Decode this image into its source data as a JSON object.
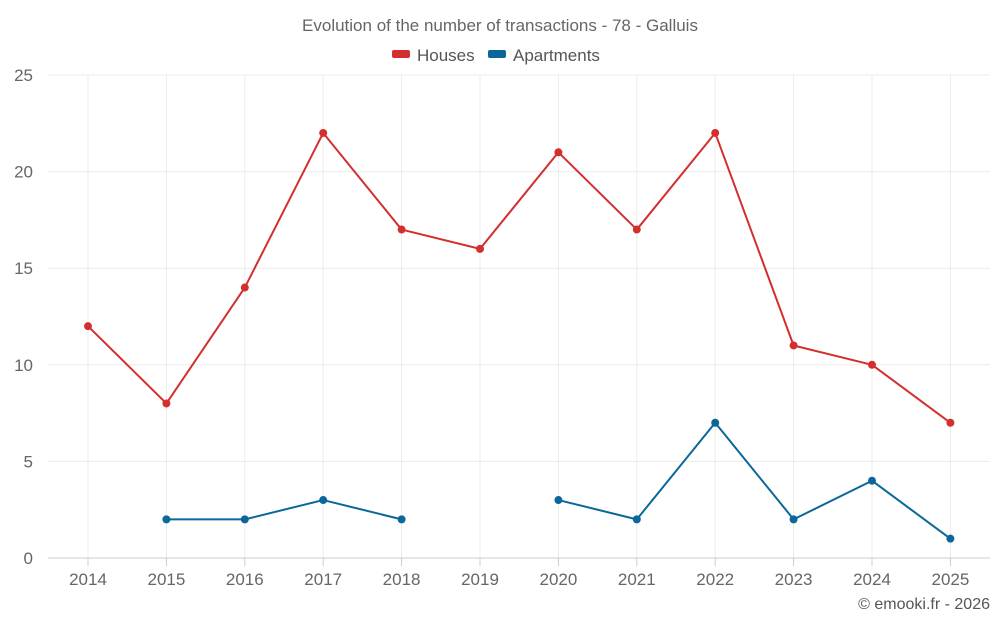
{
  "chart_data": {
    "type": "line",
    "title": "Evolution of the number of transactions - 78 - Galluis",
    "categories": [
      "2014",
      "2015",
      "2016",
      "2017",
      "2018",
      "2019",
      "2020",
      "2021",
      "2022",
      "2023",
      "2024",
      "2025"
    ],
    "ylim": [
      0,
      25
    ],
    "yticks": [
      0,
      5,
      10,
      15,
      20,
      25
    ],
    "xlabel": "",
    "ylabel": "",
    "grid": true,
    "legend_position": "top-center",
    "series": [
      {
        "name": "Houses",
        "color": "#d32f2f",
        "values": [
          12,
          8,
          14,
          22,
          17,
          16,
          21,
          17,
          22,
          11,
          10,
          7
        ]
      },
      {
        "name": "Apartments",
        "color": "#0b6799",
        "values": [
          null,
          2,
          2,
          3,
          2,
          null,
          3,
          2,
          7,
          2,
          4,
          1
        ]
      }
    ],
    "credit": "© emooki.fr - 2026"
  }
}
